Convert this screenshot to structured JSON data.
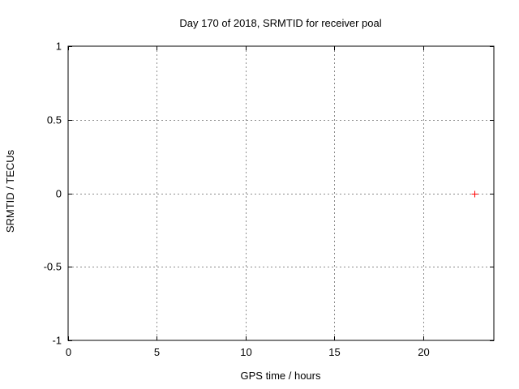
{
  "chart_data": {
    "type": "scatter",
    "title": "Day 170 of 2018, SRMTID for receiver poal",
    "xlabel": "GPS time / hours",
    "ylabel": "SRMTID / TECUs",
    "xlim": [
      0,
      24
    ],
    "ylim": [
      -1,
      1
    ],
    "xticks": [
      0,
      5,
      10,
      15,
      20
    ],
    "yticks": [
      -1,
      -0.5,
      0,
      0.5,
      1
    ],
    "grid": true,
    "legend": "none",
    "colors": {
      "border": "#000000",
      "grid": "#8c8c8c",
      "text": "#000000",
      "marker": "#ff0000"
    },
    "series": [
      {
        "name": "SRMTID",
        "marker": "plus",
        "color": "#ff0000",
        "points": [
          {
            "x": 22.9,
            "y": 0
          }
        ]
      }
    ]
  }
}
